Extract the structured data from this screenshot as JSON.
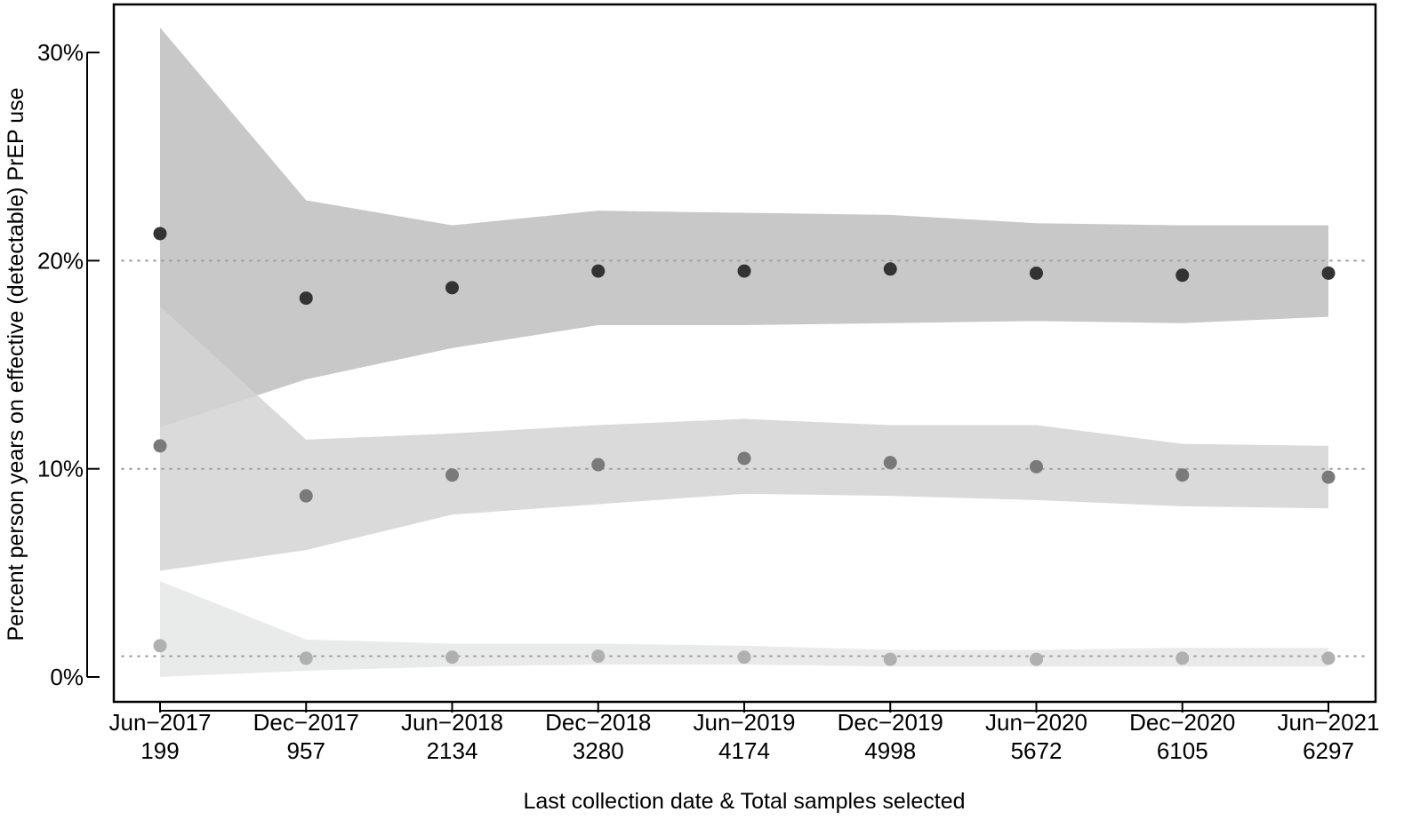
{
  "chart_data": {
    "type": "scatter",
    "title": "",
    "xlabel": "Last collection date & Total samples selected",
    "ylabel": "Percent person years on effective (detectable) PrEP use",
    "ylim": [
      0,
      30
    ],
    "y_ticks": [
      "0%",
      "10%",
      "20%",
      "30%"
    ],
    "y_tick_values": [
      0,
      10,
      20,
      30
    ],
    "categories": [
      "Jun−2017",
      "Dec−2017",
      "Jun−2018",
      "Dec−2018",
      "Jun−2019",
      "Dec−2019",
      "Jun−2020",
      "Dec−2020",
      "Jun−2021"
    ],
    "samples": [
      "199",
      "957",
      "2134",
      "3280",
      "4174",
      "4998",
      "5672",
      "6105",
      "6297"
    ],
    "reference_lines": [
      20,
      10,
      1
    ],
    "grid": false,
    "legend": "none",
    "series": [
      {
        "color": "#333333",
        "band_color": "#a6a6a6",
        "values": [
          21.3,
          18.2,
          18.7,
          19.5,
          19.5,
          19.6,
          19.4,
          19.3,
          19.4
        ],
        "lower": [
          12.0,
          14.3,
          15.8,
          16.9,
          16.9,
          17.0,
          17.1,
          17.0,
          17.3
        ],
        "upper": [
          31.2,
          22.9,
          21.7,
          22.4,
          22.3,
          22.2,
          21.8,
          21.7,
          21.7
        ]
      },
      {
        "color": "#7a7a7a",
        "band_color": "#d3d3d3",
        "values": [
          11.1,
          8.7,
          9.7,
          10.2,
          10.5,
          10.3,
          10.1,
          9.7,
          9.6
        ],
        "lower": [
          5.1,
          6.1,
          7.8,
          8.3,
          8.8,
          8.7,
          8.5,
          8.2,
          8.1
        ],
        "upper": [
          17.8,
          11.4,
          11.7,
          12.1,
          12.4,
          12.1,
          12.1,
          11.2,
          11.1
        ]
      },
      {
        "color": "#b0b0b0",
        "band_color": "#e9eaea",
        "values": [
          1.5,
          0.9,
          0.95,
          1.0,
          0.95,
          0.85,
          0.85,
          0.9,
          0.9
        ],
        "lower": [
          0.0,
          0.3,
          0.5,
          0.6,
          0.6,
          0.5,
          0.5,
          0.5,
          0.5
        ],
        "upper": [
          4.6,
          1.8,
          1.6,
          1.6,
          1.5,
          1.3,
          1.3,
          1.4,
          1.4
        ]
      }
    ]
  }
}
